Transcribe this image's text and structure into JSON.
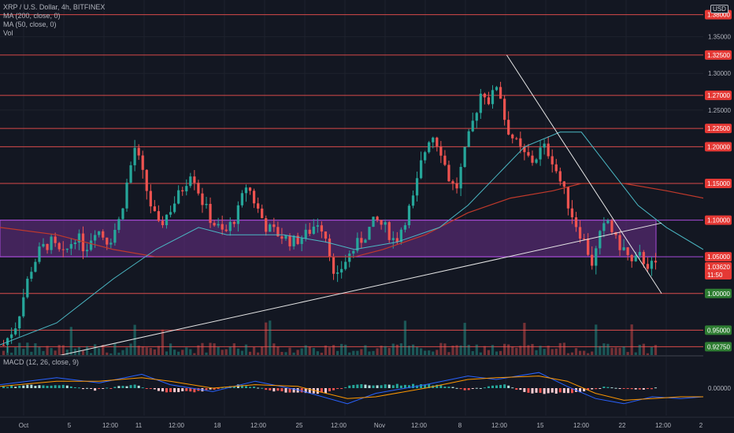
{
  "header": {
    "symbol_line": "XRP / U.S. Dollar, 4h, BITFINEX",
    "ma200_label": "MA (200, close, 0)",
    "ma50_label": "MA (50, close, 0)",
    "vol_label": "Vol",
    "macd_label": "MACD (12, 26, close, 9)",
    "currency_badge": "USD"
  },
  "colors": {
    "background": "#131722",
    "up": "#26a69a",
    "down": "#ef5350",
    "level_line": "#d84a4a",
    "zone": "#6b2f8a",
    "ma50": "#4bb8c4",
    "ma200": "#c0392b",
    "trendline": "#e6e6e6",
    "macd": "#2962ff",
    "signal": "#ff9800"
  },
  "chart_data": {
    "type": "candlestick",
    "title": "XRP / U.S. Dollar, 4h, BITFINEX",
    "ylim": [
      0.915,
      1.4
    ],
    "y_ticks": [
      1.35,
      1.3,
      1.25,
      1.2,
      1.15,
      1.1,
      1.05,
      1.0,
      0.95
    ],
    "x_ticks": [
      "Oct",
      "5",
      "12:00",
      "11",
      "12:00",
      "18",
      "12:00",
      "25",
      "12:00",
      "Nov",
      "12:00",
      "8",
      "12:00",
      "15",
      "12:00",
      "22",
      "12:00",
      "2"
    ],
    "horizontal_levels": [
      {
        "value": 1.38,
        "label": "1.38000",
        "color": "#e53935"
      },
      {
        "value": 1.325,
        "label": "1.32500",
        "color": "#e53935"
      },
      {
        "value": 1.27,
        "label": "1.27000",
        "color": "#e53935"
      },
      {
        "value": 1.225,
        "label": "1.22500",
        "color": "#e53935"
      },
      {
        "value": 1.2,
        "label": "1.20000",
        "color": "#e53935"
      },
      {
        "value": 1.15,
        "label": "1.15000",
        "color": "#e53935"
      },
      {
        "value": 1.1,
        "label": "1.10000",
        "color": "#e53935"
      },
      {
        "value": 1.05,
        "label": "1.05000",
        "color": "#e53935"
      },
      {
        "value": 1.0,
        "label": "1.00000",
        "color": "#2e7d32"
      },
      {
        "value": 0.95,
        "label": "0.95000",
        "color": "#2e7d32"
      },
      {
        "value": 0.9275,
        "label": "0.92750",
        "color": "#2e7d32"
      }
    ],
    "current_price": {
      "value": 1.0362,
      "label": "1.03620",
      "countdown": "11:50"
    },
    "zone": {
      "from": 1.05,
      "to": 1.1
    },
    "price_path": [
      [
        0,
        0.93
      ],
      [
        10,
        0.96
      ],
      [
        20,
        1.03
      ],
      [
        28,
        1.06
      ],
      [
        36,
        1.07
      ],
      [
        45,
        1.05
      ],
      [
        55,
        1.08
      ],
      [
        62,
        1.06
      ],
      [
        70,
        1.09
      ],
      [
        80,
        1.07
      ],
      [
        88,
        1.1
      ],
      [
        95,
        1.16
      ],
      [
        100,
        1.2
      ],
      [
        106,
        1.16
      ],
      [
        112,
        1.12
      ],
      [
        118,
        1.09
      ],
      [
        125,
        1.11
      ],
      [
        132,
        1.13
      ],
      [
        138,
        1.15
      ],
      [
        143,
        1.17
      ],
      [
        150,
        1.13
      ],
      [
        158,
        1.1
      ],
      [
        168,
        1.08
      ],
      [
        178,
        1.11
      ],
      [
        185,
        1.15
      ],
      [
        192,
        1.12
      ],
      [
        200,
        1.09
      ],
      [
        210,
        1.08
      ],
      [
        220,
        1.07
      ],
      [
        230,
        1.08
      ],
      [
        240,
        1.1
      ],
      [
        247,
        1.07
      ],
      [
        252,
        1.01
      ],
      [
        258,
        1.04
      ],
      [
        266,
        1.06
      ],
      [
        275,
        1.08
      ],
      [
        283,
        1.1
      ],
      [
        290,
        1.09
      ],
      [
        298,
        1.07
      ],
      [
        305,
        1.1
      ],
      [
        312,
        1.13
      ],
      [
        318,
        1.18
      ],
      [
        325,
        1.22
      ],
      [
        332,
        1.2
      ],
      [
        338,
        1.16
      ],
      [
        344,
        1.14
      ],
      [
        352,
        1.2
      ],
      [
        358,
        1.24
      ],
      [
        364,
        1.28
      ],
      [
        370,
        1.26
      ],
      [
        376,
        1.29
      ],
      [
        382,
        1.23
      ],
      [
        388,
        1.21
      ],
      [
        395,
        1.19
      ],
      [
        403,
        1.18
      ],
      [
        410,
        1.2
      ],
      [
        416,
        1.19
      ],
      [
        422,
        1.16
      ],
      [
        428,
        1.13
      ],
      [
        434,
        1.1
      ],
      [
        442,
        1.07
      ],
      [
        448,
        1.04
      ],
      [
        454,
        1.08
      ],
      [
        460,
        1.1
      ],
      [
        466,
        1.07
      ],
      [
        472,
        1.06
      ],
      [
        478,
        1.04
      ],
      [
        484,
        1.05
      ],
      [
        490,
        1.04
      ],
      [
        496,
        1.036
      ]
    ],
    "ma50_path": [
      [
        0,
        0.93
      ],
      [
        40,
        0.96
      ],
      [
        80,
        1.02
      ],
      [
        110,
        1.06
      ],
      [
        140,
        1.09
      ],
      [
        160,
        1.08
      ],
      [
        200,
        1.08
      ],
      [
        230,
        1.07
      ],
      [
        250,
        1.06
      ],
      [
        280,
        1.07
      ],
      [
        310,
        1.09
      ],
      [
        330,
        1.12
      ],
      [
        350,
        1.16
      ],
      [
        370,
        1.2
      ],
      [
        395,
        1.22
      ],
      [
        410,
        1.22
      ],
      [
        430,
        1.17
      ],
      [
        450,
        1.12
      ],
      [
        470,
        1.09
      ],
      [
        496,
        1.06
      ]
    ],
    "ma200_path": [
      [
        0,
        1.09
      ],
      [
        40,
        1.08
      ],
      [
        80,
        1.06
      ],
      [
        110,
        1.05
      ],
      [
        140,
        1.05
      ],
      [
        180,
        1.05
      ],
      [
        220,
        1.05
      ],
      [
        250,
        1.05
      ],
      [
        270,
        1.06
      ],
      [
        300,
        1.08
      ],
      [
        330,
        1.11
      ],
      [
        360,
        1.13
      ],
      [
        390,
        1.14
      ],
      [
        410,
        1.15
      ],
      [
        440,
        1.15
      ],
      [
        470,
        1.14
      ],
      [
        496,
        1.13
      ]
    ],
    "ascending_trendline": [
      [
        0.1,
        0.915
      ],
      [
        1.0,
        1.096
      ]
    ],
    "descending_trendline": [
      [
        0.711,
        1.325
      ],
      [
        1.0,
        1.0
      ]
    ],
    "macd": {
      "zero_label": "0.00000",
      "macd_path": [
        [
          0,
          0.2
        ],
        [
          40,
          0.6
        ],
        [
          70,
          0.3
        ],
        [
          100,
          0.8
        ],
        [
          120,
          0.2
        ],
        [
          150,
          -0.2
        ],
        [
          180,
          0.4
        ],
        [
          210,
          -0.1
        ],
        [
          245,
          -0.9
        ],
        [
          265,
          -0.3
        ],
        [
          300,
          0.2
        ],
        [
          330,
          0.7
        ],
        [
          350,
          0.5
        ],
        [
          380,
          0.9
        ],
        [
          400,
          0.1
        ],
        [
          420,
          -0.6
        ],
        [
          440,
          -0.9
        ],
        [
          460,
          -0.5
        ],
        [
          480,
          -0.6
        ],
        [
          496,
          -0.5
        ]
      ],
      "signal_path": [
        [
          0,
          0.1
        ],
        [
          40,
          0.4
        ],
        [
          70,
          0.4
        ],
        [
          100,
          0.6
        ],
        [
          120,
          0.4
        ],
        [
          150,
          0.0
        ],
        [
          180,
          0.2
        ],
        [
          210,
          0.1
        ],
        [
          245,
          -0.6
        ],
        [
          265,
          -0.5
        ],
        [
          300,
          0.0
        ],
        [
          330,
          0.5
        ],
        [
          350,
          0.6
        ],
        [
          380,
          0.7
        ],
        [
          400,
          0.4
        ],
        [
          420,
          -0.3
        ],
        [
          440,
          -0.7
        ],
        [
          460,
          -0.6
        ],
        [
          480,
          -0.5
        ],
        [
          496,
          -0.5
        ]
      ]
    }
  }
}
